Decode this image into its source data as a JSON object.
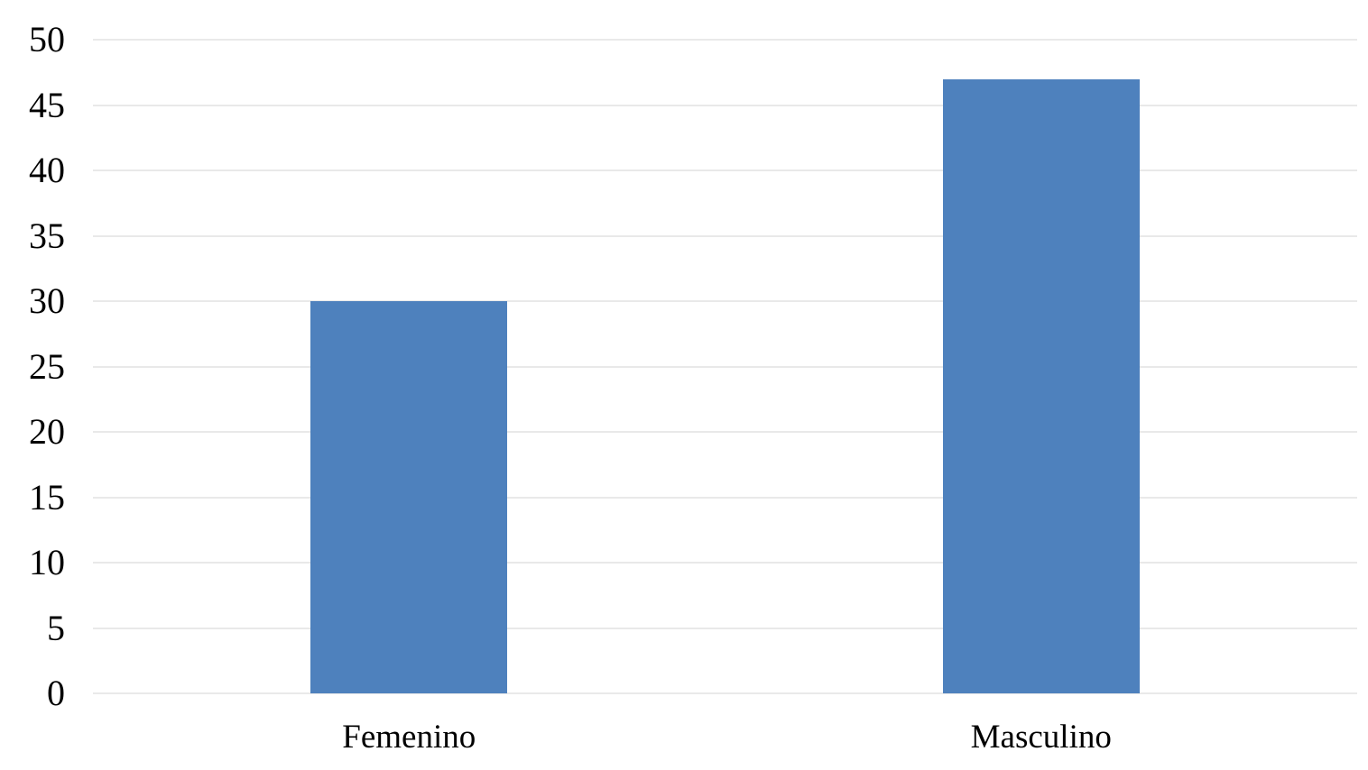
{
  "chart_data": {
    "type": "bar",
    "categories": [
      "Femenino",
      "Masculino"
    ],
    "values": [
      30,
      47
    ],
    "title": "",
    "xlabel": "",
    "ylabel": "",
    "ylim": [
      0,
      50
    ],
    "yticks": [
      0,
      5,
      10,
      15,
      20,
      25,
      30,
      35,
      40,
      45,
      50
    ],
    "grid": true,
    "legend_position": "none",
    "bar_color": "#4E81BD",
    "gridline_color": "#E9E9E9",
    "text_color": "#000000",
    "background_color": "#FFFFFF"
  }
}
